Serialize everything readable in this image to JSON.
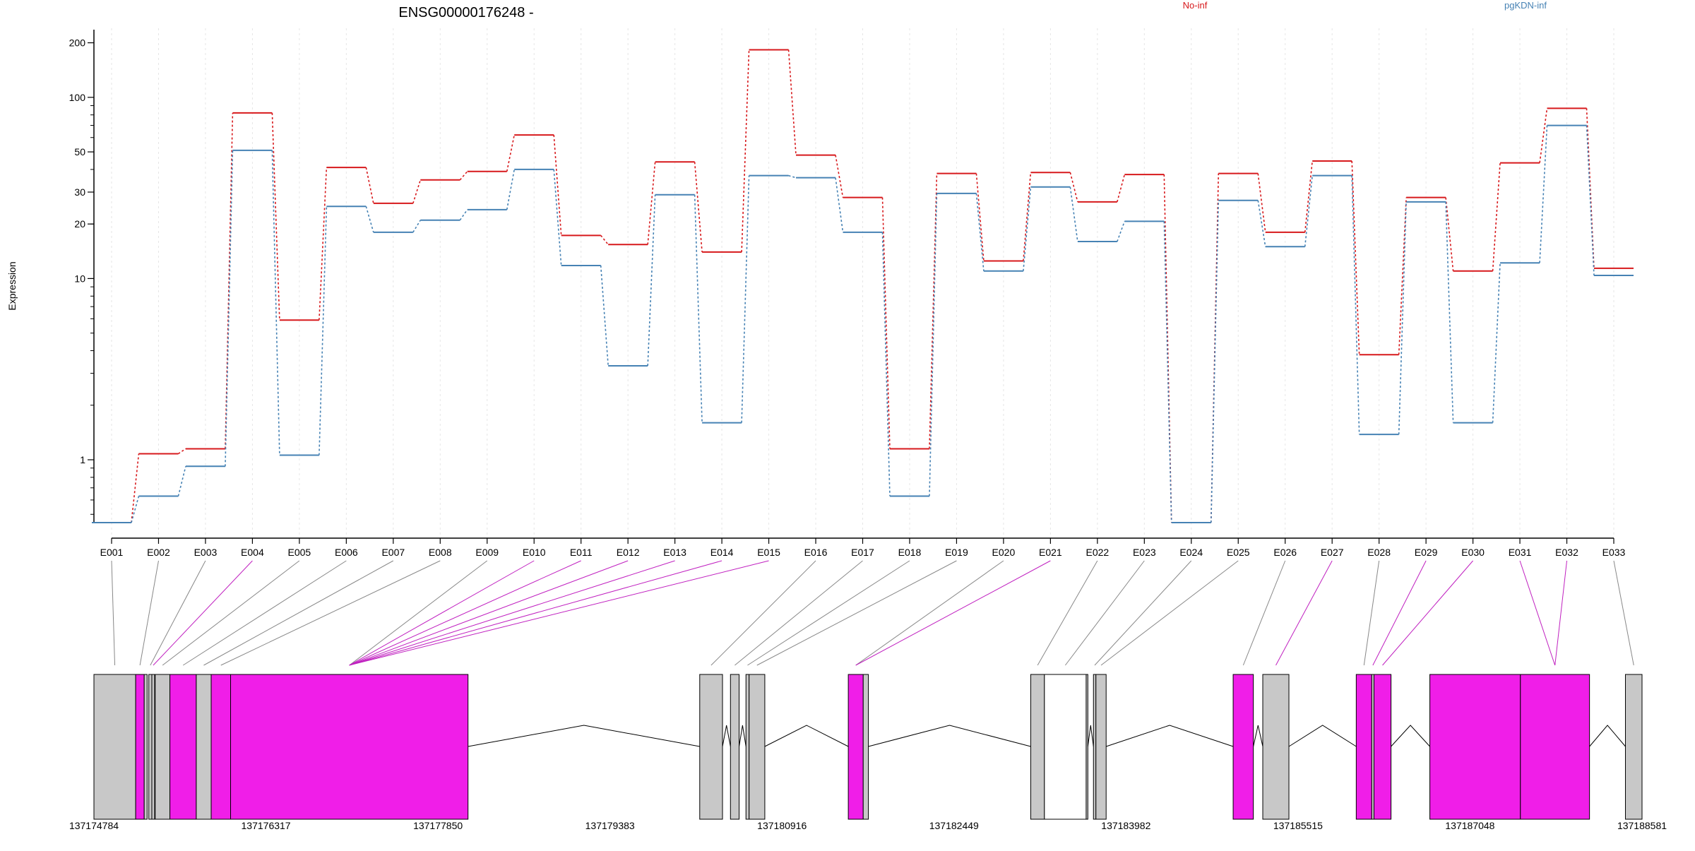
{
  "chart_data": {
    "type": "line",
    "title": "ENSG00000176248 -",
    "ylabel": "Expression",
    "xlabel": "",
    "y_scale": "log",
    "ylim": [
      0.45,
      230
    ],
    "yticks": [
      1,
      10,
      20,
      30,
      50,
      100,
      200
    ],
    "grid": "vertical dotted at each exon",
    "legend": "top-right",
    "categories": [
      "E001",
      "E002",
      "E003",
      "E004",
      "E005",
      "E006",
      "E007",
      "E008",
      "E009",
      "E010",
      "E011",
      "E012",
      "E013",
      "E014",
      "E015",
      "E016",
      "E017",
      "E018",
      "E019",
      "E020",
      "E021",
      "E022",
      "E023",
      "E024",
      "E025",
      "E026",
      "E027",
      "E028",
      "E029",
      "E030",
      "E031",
      "E032",
      "E033"
    ],
    "series": [
      {
        "name": "No-inf",
        "color": "#d7191c",
        "values": [
          0.45,
          1.08,
          1.15,
          82,
          5.9,
          41,
          26,
          35,
          39,
          62,
          17.3,
          15.4,
          44,
          14,
          183,
          48,
          28,
          1.15,
          38,
          12.5,
          38.5,
          26.5,
          37.5,
          0.45,
          38,
          18,
          44.5,
          3.8,
          28,
          11,
          43.5,
          87,
          11.4
        ]
      },
      {
        "name": "pgKDN-inf",
        "color": "#4682b4",
        "values": [
          0.45,
          0.63,
          0.92,
          51,
          1.06,
          25,
          18,
          21,
          24,
          40,
          11.8,
          3.3,
          29,
          1.6,
          37,
          36,
          18,
          0.63,
          29.5,
          11,
          32,
          16,
          20.7,
          0.45,
          27,
          15,
          37,
          1.38,
          26.5,
          1.6,
          12.2,
          70,
          10.4
        ]
      }
    ],
    "gene_model": {
      "coordinate_ticks": [
        "137174784",
        "137176317",
        "137177850",
        "137179383",
        "137180916",
        "137182449",
        "137183982",
        "137185515",
        "137187048",
        "137188581"
      ],
      "genomic_range": [
        137174784,
        137188581
      ],
      "highlight_color": "#f01ee8",
      "exon_color": "#c8c8c8",
      "exons": [
        {
          "id": "E001",
          "start": 137174784,
          "end": 137175156,
          "highlight": false
        },
        {
          "id": "E002",
          "start": 137175156,
          "end": 137175232,
          "highlight": true
        },
        {
          "id": "E003",
          "start": 137175232,
          "end": 137175258,
          "highlight": false
        },
        {
          "id": "E004",
          "start": 137175273,
          "end": 137175300,
          "highlight": false
        },
        {
          "id": "E005",
          "start": 137175300,
          "end": 137175325,
          "highlight": false
        },
        {
          "id": "E006",
          "start": 137175330,
          "end": 137175461,
          "highlight": false
        },
        {
          "id": "E007",
          "start": 137175461,
          "end": 137175696,
          "highlight": true
        },
        {
          "id": "E008",
          "start": 137175696,
          "end": 137175829,
          "highlight": false
        },
        {
          "id": "E009",
          "start": 137175829,
          "end": 137176002,
          "highlight": true
        },
        {
          "id": "E010",
          "start": 137176002,
          "end": 137178118,
          "highlight": true
        },
        {
          "id": "E011",
          "start": 137180183,
          "end": 137180386,
          "highlight": false
        },
        {
          "id": "E012",
          "start": 137180457,
          "end": 137180534,
          "highlight": false
        },
        {
          "id": "E013",
          "start": 137180595,
          "end": 137180623,
          "highlight": false
        },
        {
          "id": "E014",
          "start": 137180623,
          "end": 137180763,
          "highlight": false
        },
        {
          "id": "E015",
          "start": 137181507,
          "end": 137181640,
          "highlight": true
        },
        {
          "id": "E016",
          "start": 137181640,
          "end": 137181686,
          "highlight": false
        },
        {
          "id": "E017",
          "start": 137183133,
          "end": 137183255,
          "highlight": false
        },
        {
          "id": "E018",
          "start": 137183255,
          "end": 137183627,
          "highlight": false,
          "empty": true
        },
        {
          "id": "E019",
          "start": 137183627,
          "end": 137183642,
          "highlight": false
        },
        {
          "id": "E020",
          "start": 137183692,
          "end": 137183714,
          "highlight": false
        },
        {
          "id": "E021",
          "start": 137183714,
          "end": 137183805,
          "highlight": false
        },
        {
          "id": "E022",
          "start": 137184937,
          "end": 137185117,
          "highlight": true
        },
        {
          "id": "E023",
          "start": 137185201,
          "end": 137185434,
          "highlight": false
        },
        {
          "id": "E024",
          "start": 137186034,
          "end": 137186172,
          "highlight": true
        },
        {
          "id": "E025",
          "start": 137186172,
          "end": 137186192,
          "highlight": false
        },
        {
          "id": "E026",
          "start": 137186192,
          "end": 137186344,
          "highlight": true
        },
        {
          "id": "E027",
          "start": 137186690,
          "end": 137187497,
          "highlight": true
        },
        {
          "id": "E028",
          "start": 137187497,
          "end": 137188113,
          "highlight": true
        },
        {
          "id": "E029",
          "start": 137188433,
          "end": 137188581,
          "highlight": false
        }
      ],
      "links": [
        [
          1,
          0
        ],
        [
          2,
          1
        ],
        [
          3,
          3
        ],
        [
          4,
          4
        ],
        [
          5,
          5
        ],
        [
          6,
          6
        ],
        [
          7,
          7
        ],
        [
          8,
          8
        ],
        [
          9,
          9
        ],
        [
          10,
          9
        ],
        [
          11,
          9
        ],
        [
          12,
          9
        ],
        [
          13,
          9
        ],
        [
          14,
          9
        ],
        [
          15,
          9
        ],
        [
          16,
          10
        ],
        [
          17,
          11
        ],
        [
          18,
          12
        ],
        [
          19,
          13
        ],
        [
          20,
          14
        ],
        [
          21,
          14
        ],
        [
          22,
          16
        ],
        [
          23,
          17
        ],
        [
          24,
          19
        ],
        [
          25,
          20
        ],
        [
          26,
          21
        ],
        [
          27,
          22
        ],
        [
          28,
          23
        ],
        [
          29,
          24
        ],
        [
          30,
          25
        ],
        [
          31,
          27
        ],
        [
          32,
          27
        ],
        [
          33,
          28
        ]
      ],
      "link_highlight": [
        false,
        false,
        false,
        true,
        false,
        false,
        false,
        false,
        false,
        true,
        true,
        true,
        true,
        true,
        true,
        false,
        false,
        false,
        false,
        false,
        true,
        false,
        false,
        false,
        false,
        false,
        true,
        false,
        true,
        true,
        true,
        true,
        false
      ]
    }
  }
}
